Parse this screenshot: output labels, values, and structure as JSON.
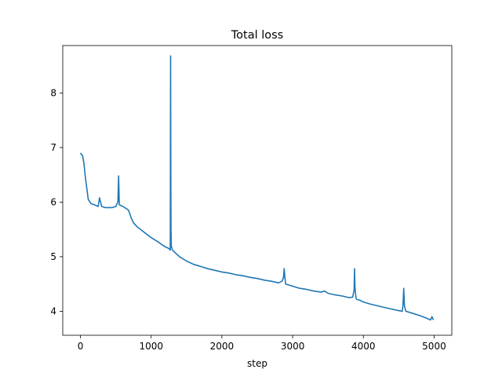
{
  "chart_data": {
    "type": "line",
    "title": "Total loss",
    "xlabel": "step",
    "ylabel": "",
    "xlim": [
      -250,
      5250
    ],
    "ylim": [
      3.56,
      8.87
    ],
    "xticks": [
      0,
      1000,
      2000,
      3000,
      4000,
      5000
    ],
    "xtick_labels": [
      "0",
      "1000",
      "2000",
      "3000",
      "4000",
      "5000"
    ],
    "yticks": [
      4,
      5,
      6,
      7,
      8
    ],
    "ytick_labels": [
      "4",
      "5",
      "6",
      "7",
      "8"
    ],
    "grid": false,
    "legend": "none",
    "series": [
      {
        "color": "#1f77b4",
        "x": [
          0,
          30,
          50,
          70,
          90,
          110,
          150,
          200,
          250,
          270,
          300,
          350,
          400,
          450,
          500,
          530,
          540,
          550,
          600,
          650,
          680,
          700,
          720,
          750,
          800,
          900,
          1000,
          1100,
          1150,
          1200,
          1250,
          1270,
          1275,
          1278,
          1280,
          1285,
          1300,
          1350,
          1400,
          1500,
          1600,
          1700,
          1800,
          1900,
          2000,
          2100,
          2200,
          2300,
          2400,
          2500,
          2600,
          2700,
          2800,
          2850,
          2870,
          2880,
          2890,
          2900,
          2950,
          3000,
          3100,
          3200,
          3300,
          3400,
          3450,
          3500,
          3600,
          3700,
          3800,
          3850,
          3870,
          3875,
          3880,
          3890,
          3900,
          3950,
          4000,
          4100,
          4200,
          4300,
          4400,
          4500,
          4550,
          4560,
          4570,
          4580,
          4600,
          4700,
          4800,
          4900,
          4950,
          4970,
          4990
        ],
        "y": [
          6.9,
          6.85,
          6.7,
          6.45,
          6.25,
          6.05,
          5.97,
          5.95,
          5.92,
          6.08,
          5.92,
          5.9,
          5.9,
          5.9,
          5.92,
          6.0,
          6.48,
          5.95,
          5.92,
          5.88,
          5.85,
          5.78,
          5.7,
          5.62,
          5.55,
          5.45,
          5.35,
          5.27,
          5.22,
          5.18,
          5.15,
          5.12,
          8.68,
          6.4,
          5.5,
          5.2,
          5.12,
          5.06,
          5.0,
          4.92,
          4.86,
          4.82,
          4.78,
          4.75,
          4.72,
          4.7,
          4.67,
          4.65,
          4.62,
          4.6,
          4.57,
          4.55,
          4.52,
          4.55,
          4.62,
          4.78,
          4.62,
          4.5,
          4.48,
          4.46,
          4.42,
          4.4,
          4.37,
          4.35,
          4.37,
          4.33,
          4.3,
          4.28,
          4.25,
          4.26,
          4.4,
          4.78,
          4.45,
          4.3,
          4.22,
          4.2,
          4.17,
          4.13,
          4.1,
          4.07,
          4.04,
          4.01,
          4.0,
          4.12,
          4.42,
          4.1,
          4.0,
          3.96,
          3.92,
          3.87,
          3.84,
          3.9,
          3.84
        ]
      }
    ]
  }
}
